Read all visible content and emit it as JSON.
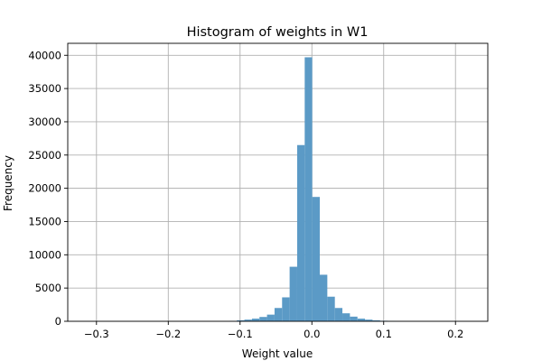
{
  "chart_data": {
    "type": "bar",
    "title": "Histogram of weights in W1",
    "xlabel": "Weight value",
    "ylabel": "Frequency",
    "xlim": [
      -0.34,
      0.245
    ],
    "ylim": [
      0,
      41800
    ],
    "xticks": [
      -0.3,
      -0.2,
      -0.1,
      0.0,
      0.1,
      0.2
    ],
    "xtick_labels": [
      "−0.3",
      "−0.2",
      "−0.1",
      "0.0",
      "0.1",
      "0.2"
    ],
    "yticks": [
      0,
      5000,
      10000,
      15000,
      20000,
      25000,
      30000,
      35000,
      40000
    ],
    "ytick_labels": [
      "0",
      "5000",
      "10000",
      "15000",
      "20000",
      "25000",
      "30000",
      "35000",
      "40000"
    ],
    "grid": true,
    "bar_color": "#5b9ac6",
    "bin_width": 0.0105,
    "bins": [
      {
        "x0": -0.115,
        "count": 60
      },
      {
        "x0": -0.1045,
        "count": 150
      },
      {
        "x0": -0.094,
        "count": 250
      },
      {
        "x0": -0.0835,
        "count": 400
      },
      {
        "x0": -0.073,
        "count": 650
      },
      {
        "x0": -0.0625,
        "count": 1000
      },
      {
        "x0": -0.052,
        "count": 2000
      },
      {
        "x0": -0.0415,
        "count": 3600
      },
      {
        "x0": -0.031,
        "count": 8200
      },
      {
        "x0": -0.0205,
        "count": 26500
      },
      {
        "x0": -0.01,
        "count": 39700
      },
      {
        "x0": 0.0005,
        "count": 18700
      },
      {
        "x0": 0.011,
        "count": 7000
      },
      {
        "x0": 0.0215,
        "count": 3700
      },
      {
        "x0": 0.032,
        "count": 2000
      },
      {
        "x0": 0.0425,
        "count": 1200
      },
      {
        "x0": 0.053,
        "count": 700
      },
      {
        "x0": 0.0635,
        "count": 400
      },
      {
        "x0": 0.074,
        "count": 250
      },
      {
        "x0": 0.0845,
        "count": 150
      },
      {
        "x0": 0.095,
        "count": 80
      },
      {
        "x0": 0.1055,
        "count": 40
      }
    ]
  }
}
